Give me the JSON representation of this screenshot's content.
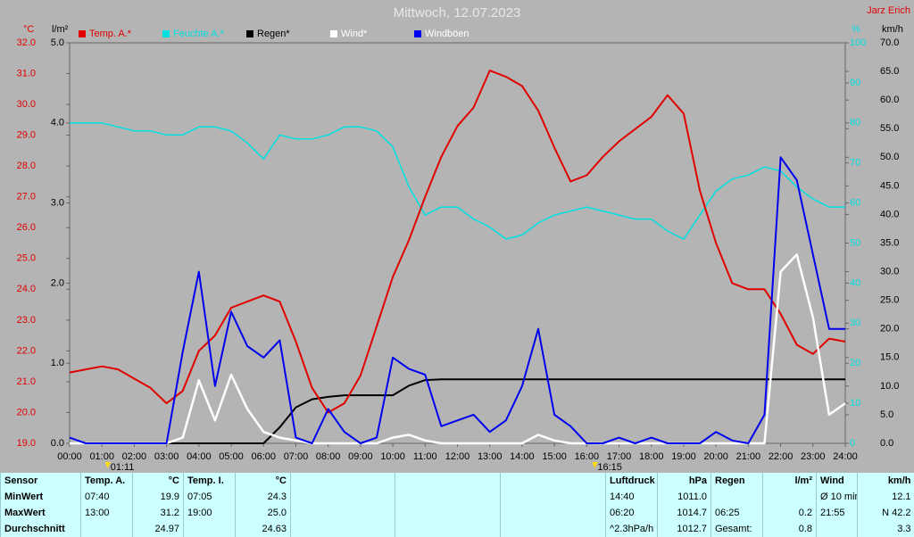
{
  "chart_data": {
    "type": "line",
    "title": "Mittwoch, 12.07.2023",
    "author": "Jarz Erich",
    "x": [
      0,
      0.5,
      1,
      1.5,
      2,
      2.5,
      3,
      3.5,
      4,
      4.5,
      5,
      5.5,
      6,
      6.5,
      7,
      7.5,
      8,
      8.5,
      9,
      9.5,
      10,
      10.5,
      11,
      11.5,
      12,
      12.5,
      13,
      13.5,
      14,
      14.5,
      15,
      15.5,
      16,
      16.5,
      17,
      17.5,
      18,
      18.5,
      19,
      19.5,
      20,
      20.5,
      21,
      21.5,
      22,
      22.5,
      23,
      23.5,
      24
    ],
    "xlim": [
      0,
      24
    ],
    "xticks": [
      {
        "value": 0,
        "label": "00:00"
      },
      {
        "value": 1,
        "label": "01:00"
      },
      {
        "value": 2,
        "label": "02:00"
      },
      {
        "value": 3,
        "label": "03:00"
      },
      {
        "value": 4,
        "label": "04:00"
      },
      {
        "value": 5,
        "label": "05:00"
      },
      {
        "value": 6,
        "label": "06:00"
      },
      {
        "value": 7,
        "label": "07:00"
      },
      {
        "value": 8,
        "label": "08:00"
      },
      {
        "value": 9,
        "label": "09:00"
      },
      {
        "value": 10,
        "label": "10:00"
      },
      {
        "value": 11,
        "label": "11:00"
      },
      {
        "value": 12,
        "label": "12:00"
      },
      {
        "value": 13,
        "label": "13:00"
      },
      {
        "value": 14,
        "label": "14:00"
      },
      {
        "value": 15,
        "label": "15:00"
      },
      {
        "value": 16,
        "label": "16:00"
      },
      {
        "value": 17,
        "label": "17:00"
      },
      {
        "value": 18,
        "label": "18:00"
      },
      {
        "value": 19,
        "label": "19:00"
      },
      {
        "value": 20,
        "label": "20:00"
      },
      {
        "value": 21,
        "label": "21:00"
      },
      {
        "value": 22,
        "label": "22:00"
      },
      {
        "value": 23,
        "label": "23:00"
      },
      {
        "value": 24,
        "label": "24:00"
      }
    ],
    "axes": [
      {
        "label": "°C",
        "side": "left",
        "color": "#e00000",
        "lim": [
          19,
          32
        ],
        "ticks": [
          {
            "value": 19,
            "label": "19.0"
          },
          {
            "value": 20,
            "label": "20.0"
          },
          {
            "value": 21,
            "label": "21.0"
          },
          {
            "value": 22,
            "label": "22.0"
          },
          {
            "value": 23,
            "label": "23.0"
          },
          {
            "value": 24,
            "label": "24.0"
          },
          {
            "value": 25,
            "label": "25.0"
          },
          {
            "value": 26,
            "label": "26.0"
          },
          {
            "value": 27,
            "label": "27.0"
          },
          {
            "value": 28,
            "label": "28.0"
          },
          {
            "value": 29,
            "label": "29.0"
          },
          {
            "value": 30,
            "label": "30.0"
          },
          {
            "value": 31,
            "label": "31.0"
          },
          {
            "value": 32,
            "label": "32.0"
          }
        ]
      },
      {
        "label": "l/m²",
        "side": "left",
        "color": "#000000",
        "lim": [
          0,
          5
        ],
        "ticks": [
          {
            "value": 0,
            "label": "0.0"
          },
          {
            "value": 1,
            "label": "1.0"
          },
          {
            "value": 2,
            "label": "2.0"
          },
          {
            "value": 3,
            "label": "3.0"
          },
          {
            "value": 4,
            "label": "4.0"
          },
          {
            "value": 5,
            "label": "5.0"
          }
        ]
      },
      {
        "label": "%",
        "side": "right",
        "color": "#00e0e0",
        "lim": [
          0,
          100
        ],
        "ticks": [
          0,
          10,
          20,
          30,
          40,
          50,
          60,
          70,
          80,
          90,
          100
        ]
      },
      {
        "label": "km/h",
        "side": "right",
        "color": "#000000",
        "lim": [
          0,
          70
        ],
        "ticks": [
          {
            "value": 0,
            "label": "0.0"
          },
          {
            "value": 5,
            "label": "5.0"
          },
          {
            "value": 10,
            "label": "10.0"
          },
          {
            "value": 15,
            "label": "15.0"
          },
          {
            "value": 20,
            "label": "20.0"
          },
          {
            "value": 25,
            "label": "25.0"
          },
          {
            "value": 30,
            "label": "30.0"
          },
          {
            "value": 35,
            "label": "35.0"
          },
          {
            "value": 40,
            "label": "40.0"
          },
          {
            "value": 45,
            "label": "45.0"
          },
          {
            "value": 50,
            "label": "50.0"
          },
          {
            "value": 55,
            "label": "55.0"
          },
          {
            "value": 60,
            "label": "60.0"
          },
          {
            "value": 65,
            "label": "65.0"
          },
          {
            "value": 70,
            "label": "70.0"
          }
        ]
      }
    ],
    "series": [
      {
        "name": "Temp. A.*",
        "color": "#e00000",
        "axis": 0,
        "values": [
          21.3,
          21.4,
          21.5,
          21.4,
          21.1,
          20.8,
          20.3,
          20.7,
          22.0,
          22.5,
          23.4,
          23.6,
          23.8,
          23.6,
          22.3,
          20.8,
          20.0,
          20.3,
          21.2,
          22.8,
          24.4,
          25.6,
          27.0,
          28.3,
          29.3,
          29.9,
          31.1,
          30.9,
          30.6,
          29.8,
          28.6,
          27.5,
          27.7,
          28.3,
          28.8,
          29.2,
          29.6,
          30.3,
          29.7,
          27.2,
          25.5,
          24.2,
          24.0,
          24.0,
          23.2,
          22.2,
          21.9,
          22.4,
          22.3
        ]
      },
      {
        "name": "Feuchte A.*",
        "color": "#00e0e0",
        "axis": 2,
        "values": [
          80,
          80,
          80,
          79,
          78,
          78,
          77,
          77,
          79,
          79,
          78,
          75,
          71,
          77,
          76,
          76,
          77,
          79,
          79,
          78,
          74,
          64,
          57,
          59,
          59,
          56,
          54,
          51,
          52,
          55,
          57,
          58,
          59,
          58,
          57,
          56,
          56,
          53,
          51,
          57,
          63,
          66,
          67,
          69,
          68,
          64,
          61,
          59,
          59
        ]
      },
      {
        "name": "Regen*",
        "color": "#000000",
        "axis": 1,
        "values": [
          0,
          0,
          0,
          0,
          0,
          0,
          0,
          0,
          0,
          0,
          0,
          0,
          0,
          0.2,
          0.45,
          0.55,
          0.58,
          0.6,
          0.6,
          0.6,
          0.6,
          0.72,
          0.79,
          0.8,
          0.8,
          0.8,
          0.8,
          0.8,
          0.8,
          0.8,
          0.8,
          0.8,
          0.8,
          0.8,
          0.8,
          0.8,
          0.8,
          0.8,
          0.8,
          0.8,
          0.8,
          0.8,
          0.8,
          0.8,
          0.8,
          0.8,
          0.8,
          0.8,
          0.8
        ]
      },
      {
        "name": "Wind*",
        "color": "#ffffff",
        "axis": 3,
        "values": [
          0,
          0,
          0,
          0,
          0,
          0,
          0,
          1,
          11,
          4,
          12,
          6,
          2,
          1,
          0.5,
          0,
          0,
          0,
          0,
          0,
          1,
          1.5,
          0.5,
          0,
          0,
          0,
          0,
          0,
          0,
          1.5,
          0.5,
          0,
          0,
          0,
          0,
          0,
          0,
          0,
          0,
          0,
          0,
          0,
          0,
          0,
          30,
          33,
          22,
          5,
          7
        ]
      },
      {
        "name": "Windböen",
        "color": "#0000ee",
        "axis": 3,
        "values": [
          1,
          0,
          0,
          0,
          0,
          0,
          0,
          16,
          30,
          10,
          23,
          17,
          15,
          18,
          1,
          0,
          6,
          2,
          0,
          1,
          15,
          13,
          12,
          3,
          4,
          5,
          2,
          4,
          10,
          20,
          5,
          3,
          0,
          0,
          1,
          0,
          1,
          0,
          0,
          0,
          2,
          0.5,
          0,
          5,
          50,
          46,
          33,
          20,
          20
        ]
      }
    ],
    "annotations": [
      {
        "label": "01:11",
        "x": 1.18
      },
      {
        "label": "16:15",
        "x": 16.25
      }
    ]
  },
  "table": {
    "row_labels": [
      "Sensor",
      "MinWert",
      "MaxWert",
      "Durchschnitt"
    ],
    "sections": [
      {
        "title": "Temp. A.",
        "unit": "°C",
        "rows": [
          {
            "time": "07:40",
            "value": "19.9"
          },
          {
            "time": "13:00",
            "value": "31.2"
          },
          {
            "value": "24.97"
          }
        ]
      },
      {
        "title": "Temp. I.",
        "unit": "°C",
        "rows": [
          {
            "time": "07:05",
            "value": "24.3"
          },
          {
            "time": "19:00",
            "value": "25.0"
          },
          {
            "value": "24.63"
          }
        ]
      },
      {
        "title": "Luftdruck",
        "unit": "hPa",
        "rows": [
          {
            "time": "14:40",
            "value": "1011.0"
          },
          {
            "time": "06:20",
            "value": "1014.7"
          },
          {
            "time": "^2.3hPa/h",
            "value": "1012.7"
          }
        ]
      },
      {
        "title": "Regen",
        "unit": "l/m²",
        "rows": [
          {},
          {
            "time": "06:25",
            "value": "0.2"
          },
          {
            "time": "Gesamt:",
            "value": "0.8"
          }
        ]
      },
      {
        "title": "Wind",
        "unit": "km/h",
        "rows": [
          {
            "time": "Ø 10 min.",
            "value": "12.1"
          },
          {
            "time": "21:55",
            "value": "N 42.2"
          },
          {
            "value": "3.3"
          }
        ]
      }
    ]
  }
}
